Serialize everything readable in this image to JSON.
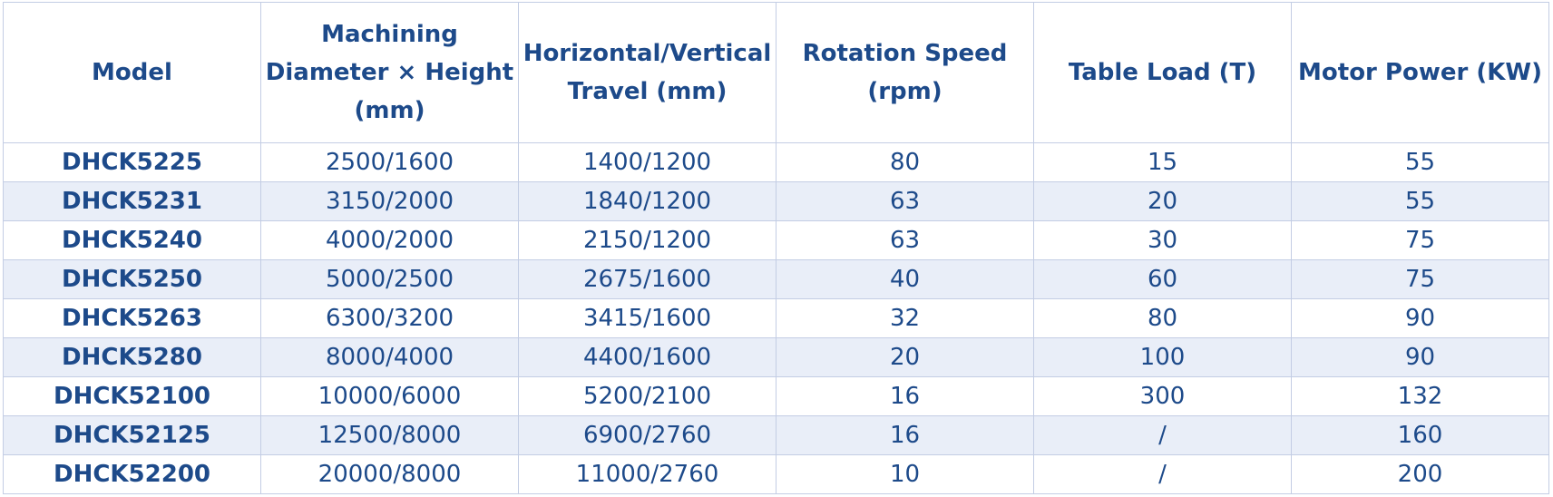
{
  "table": {
    "header": [
      "Model",
      "Machining Diameter × Height (mm)",
      "Horizontal/Vertical Travel (mm)",
      "Rotation Speed (rpm)",
      "Table Load (T)",
      "Motor Power (KW)"
    ],
    "rows": [
      [
        "DHCK5225",
        "2500/1600",
        "1400/1200",
        "80",
        "15",
        "55"
      ],
      [
        "DHCK5231",
        "3150/2000",
        "1840/1200",
        "63",
        "20",
        "55"
      ],
      [
        "DHCK5240",
        "4000/2000",
        "2150/1200",
        "63",
        "30",
        "75"
      ],
      [
        "DHCK5250",
        "5000/2500",
        "2675/1600",
        "40",
        "60",
        "75"
      ],
      [
        "DHCK5263",
        "6300/3200",
        "3415/1600",
        "32",
        "80",
        "90"
      ],
      [
        "DHCK5280",
        "8000/4000",
        "4400/1600",
        "20",
        "100",
        "90"
      ],
      [
        "DHCK52100",
        "10000/6000",
        "5200/2100",
        "16",
        "300",
        "132"
      ],
      [
        "DHCK52125",
        "12500/8000",
        "6900/2760",
        "16",
        "/",
        "160"
      ],
      [
        "DHCK52200",
        "20000/8000",
        "11000/2760",
        "10",
        "/",
        "200"
      ]
    ]
  }
}
